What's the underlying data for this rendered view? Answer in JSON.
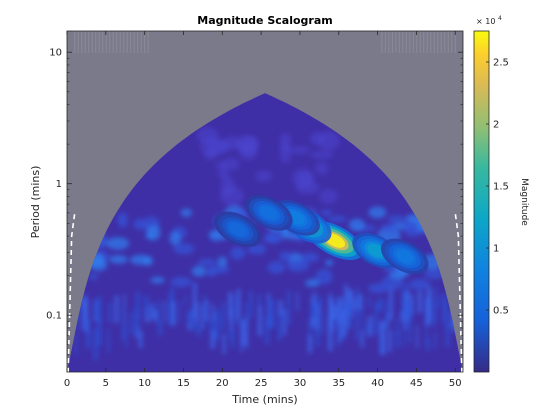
{
  "chart_data": {
    "type": "heatmap",
    "title": "Magnitude Scalogram",
    "xlabel": "Time (mins)",
    "ylabel": "Period (mins)",
    "xlim": [
      0,
      51
    ],
    "ylim": [
      0.037,
      14.5
    ],
    "y_scale": "log",
    "x_ticks": [
      0,
      5,
      10,
      15,
      20,
      25,
      30,
      35,
      40,
      45,
      50
    ],
    "y_ticks": [
      {
        "value": 0.1,
        "label": "0.1"
      },
      {
        "value": 1,
        "label": "1"
      },
      {
        "value": 10,
        "label": "10"
      }
    ],
    "cone_of_influence": true,
    "colormap": "parula",
    "colorbar": {
      "label": "Magnitude",
      "exponent_label": "× 10",
      "exponent_power": "4",
      "range": [
        0,
        27500
      ],
      "ticks": [
        {
          "value": 5000,
          "label": "0.5"
        },
        {
          "value": 10000,
          "label": "1"
        },
        {
          "value": 15000,
          "label": "1.5"
        },
        {
          "value": 20000,
          "label": "2"
        },
        {
          "value": 25000,
          "label": "2.5"
        }
      ]
    },
    "peaks": [
      {
        "time": 34.5,
        "period": 0.37,
        "magnitude": 27000
      },
      {
        "time": 31.0,
        "period": 0.48,
        "magnitude": 16000
      },
      {
        "time": 39.8,
        "period": 0.31,
        "magnitude": 11000
      },
      {
        "time": 29.5,
        "period": 0.55,
        "magnitude": 8000
      },
      {
        "time": 43.5,
        "period": 0.28,
        "magnitude": 7000
      },
      {
        "time": 26.0,
        "period": 0.6,
        "magnitude": 6000
      },
      {
        "time": 22.0,
        "period": 0.45,
        "magnitude": 5000
      }
    ],
    "colors": {
      "background": "#3f2fa6",
      "masked": "#7a7a8a",
      "frame": "#262626"
    }
  }
}
